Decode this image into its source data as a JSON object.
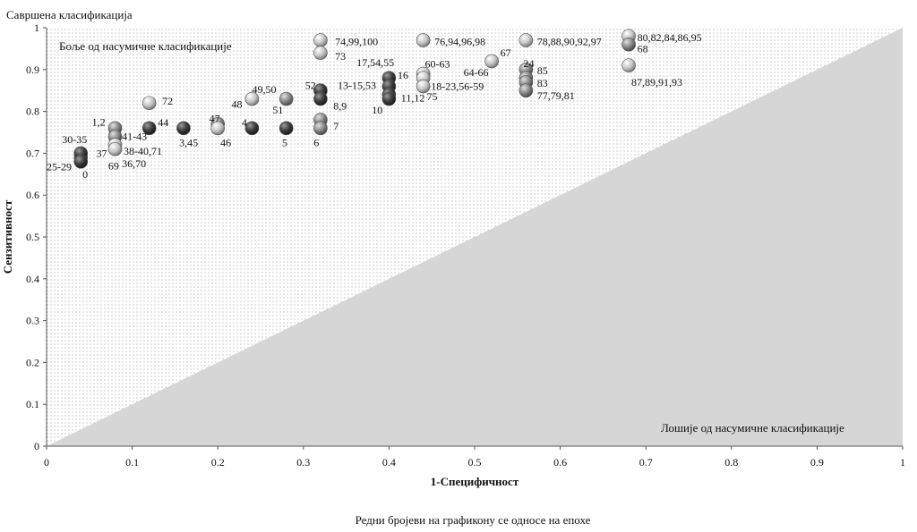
{
  "chart_data": {
    "type": "scatter",
    "title": "",
    "xlabel": "1-Специфичност",
    "ylabel": "Сензитивност",
    "xlim": [
      0,
      1
    ],
    "ylim": [
      0,
      1
    ],
    "xticks": [
      "0",
      "0.1",
      "0.2",
      "0.3",
      "0.4",
      "0.5",
      "0.6",
      "0.7",
      "0.8",
      "0.9",
      "1"
    ],
    "yticks": [
      "0",
      "0.1",
      "0.2",
      "0.3",
      "0.4",
      "0.5",
      "0.6",
      "0.7",
      "0.8",
      "0.9",
      "1"
    ],
    "grid": false,
    "annotations": {
      "perfect": "Савршена класификација",
      "better": "Боље од насумичне класификације",
      "worse": "Лошије од насумичне класификације",
      "footnote": "Редни бројеви на графикону се односе на епохе"
    },
    "colors": {
      "worse_region": "#d6d6d6",
      "dots": "#bdbdbd",
      "axis": "#555555"
    },
    "points": [
      {
        "x": 0.04,
        "y": 0.69,
        "shade": "dark"
      },
      {
        "x": 0.04,
        "y": 0.7,
        "shade": "dark"
      },
      {
        "x": 0.04,
        "y": 0.68,
        "shade": "dark"
      },
      {
        "x": 0.08,
        "y": 0.76,
        "shade": "mid"
      },
      {
        "x": 0.08,
        "y": 0.74,
        "shade": "mid"
      },
      {
        "x": 0.08,
        "y": 0.72,
        "shade": "light"
      },
      {
        "x": 0.08,
        "y": 0.71,
        "shade": "light"
      },
      {
        "x": 0.12,
        "y": 0.82,
        "shade": "light"
      },
      {
        "x": 0.12,
        "y": 0.76,
        "shade": "dark"
      },
      {
        "x": 0.16,
        "y": 0.76,
        "shade": "dark"
      },
      {
        "x": 0.2,
        "y": 0.77,
        "shade": "mid"
      },
      {
        "x": 0.2,
        "y": 0.76,
        "shade": "light"
      },
      {
        "x": 0.24,
        "y": 0.83,
        "shade": "light"
      },
      {
        "x": 0.24,
        "y": 0.76,
        "shade": "dark"
      },
      {
        "x": 0.28,
        "y": 0.83,
        "shade": "mid"
      },
      {
        "x": 0.28,
        "y": 0.76,
        "shade": "dark"
      },
      {
        "x": 0.32,
        "y": 0.97,
        "shade": "light"
      },
      {
        "x": 0.32,
        "y": 0.94,
        "shade": "light"
      },
      {
        "x": 0.32,
        "y": 0.85,
        "shade": "dark"
      },
      {
        "x": 0.32,
        "y": 0.83,
        "shade": "dark"
      },
      {
        "x": 0.32,
        "y": 0.78,
        "shade": "mid"
      },
      {
        "x": 0.32,
        "y": 0.76,
        "shade": "mid"
      },
      {
        "x": 0.4,
        "y": 0.88,
        "shade": "dark"
      },
      {
        "x": 0.4,
        "y": 0.86,
        "shade": "dark"
      },
      {
        "x": 0.4,
        "y": 0.84,
        "shade": "dark"
      },
      {
        "x": 0.4,
        "y": 0.83,
        "shade": "dark"
      },
      {
        "x": 0.44,
        "y": 0.97,
        "shade": "light"
      },
      {
        "x": 0.44,
        "y": 0.89,
        "shade": "light"
      },
      {
        "x": 0.44,
        "y": 0.88,
        "shade": "light"
      },
      {
        "x": 0.44,
        "y": 0.86,
        "shade": "light"
      },
      {
        "x": 0.52,
        "y": 0.92,
        "shade": "light"
      },
      {
        "x": 0.56,
        "y": 0.97,
        "shade": "light"
      },
      {
        "x": 0.56,
        "y": 0.9,
        "shade": "mid"
      },
      {
        "x": 0.56,
        "y": 0.88,
        "shade": "mid"
      },
      {
        "x": 0.56,
        "y": 0.87,
        "shade": "mid"
      },
      {
        "x": 0.56,
        "y": 0.85,
        "shade": "mid"
      },
      {
        "x": 0.68,
        "y": 0.98,
        "shade": "light"
      },
      {
        "x": 0.68,
        "y": 0.96,
        "shade": "mid"
      },
      {
        "x": 0.68,
        "y": 0.91,
        "shade": "light"
      }
    ],
    "labels": [
      {
        "text": "30-35",
        "x": 0.018,
        "y": 0.733
      },
      {
        "text": "25-29",
        "x": 0.0,
        "y": 0.668
      },
      {
        "text": "0",
        "x": 0.042,
        "y": 0.65
      },
      {
        "text": "1,2",
        "x": 0.053,
        "y": 0.775
      },
      {
        "text": "41-43",
        "x": 0.088,
        "y": 0.74
      },
      {
        "text": "37",
        "x": 0.058,
        "y": 0.7
      },
      {
        "text": "38-40,71",
        "x": 0.09,
        "y": 0.705
      },
      {
        "text": "69",
        "x": 0.072,
        "y": 0.67
      },
      {
        "text": "36,70",
        "x": 0.088,
        "y": 0.675
      },
      {
        "text": "72",
        "x": 0.135,
        "y": 0.825
      },
      {
        "text": "44",
        "x": 0.13,
        "y": 0.773
      },
      {
        "text": "3,45",
        "x": 0.155,
        "y": 0.725
      },
      {
        "text": "47",
        "x": 0.19,
        "y": 0.783
      },
      {
        "text": "46",
        "x": 0.203,
        "y": 0.725
      },
      {
        "text": "48",
        "x": 0.216,
        "y": 0.817
      },
      {
        "text": "49,50",
        "x": 0.24,
        "y": 0.853
      },
      {
        "text": "4",
        "x": 0.228,
        "y": 0.773
      },
      {
        "text": "51",
        "x": 0.264,
        "y": 0.803
      },
      {
        "text": "5",
        "x": 0.275,
        "y": 0.725
      },
      {
        "text": "74,99,100",
        "x": 0.337,
        "y": 0.967
      },
      {
        "text": "73",
        "x": 0.337,
        "y": 0.932
      },
      {
        "text": "52",
        "x": 0.302,
        "y": 0.862
      },
      {
        "text": "8,9",
        "x": 0.335,
        "y": 0.813
      },
      {
        "text": "7",
        "x": 0.335,
        "y": 0.765
      },
      {
        "text": "6",
        "x": 0.312,
        "y": 0.725
      },
      {
        "text": "17,54,55",
        "x": 0.362,
        "y": 0.917
      },
      {
        "text": "13-15,53",
        "x": 0.34,
        "y": 0.862
      },
      {
        "text": "16",
        "x": 0.41,
        "y": 0.887
      },
      {
        "text": "11,12",
        "x": 0.414,
        "y": 0.832
      },
      {
        "text": "10",
        "x": 0.38,
        "y": 0.803
      },
      {
        "text": "76,94,96,98",
        "x": 0.453,
        "y": 0.967
      },
      {
        "text": "60-63",
        "x": 0.442,
        "y": 0.913
      },
      {
        "text": "18-23,56-59",
        "x": 0.449,
        "y": 0.86
      },
      {
        "text": "75",
        "x": 0.444,
        "y": 0.835
      },
      {
        "text": "67",
        "x": 0.53,
        "y": 0.94
      },
      {
        "text": "64-66",
        "x": 0.487,
        "y": 0.893
      },
      {
        "text": "24",
        "x": 0.557,
        "y": 0.915
      },
      {
        "text": "85",
        "x": 0.573,
        "y": 0.897
      },
      {
        "text": "78,88,90,92,97",
        "x": 0.573,
        "y": 0.967
      },
      {
        "text": "83",
        "x": 0.573,
        "y": 0.867
      },
      {
        "text": "77,79,81",
        "x": 0.573,
        "y": 0.838
      },
      {
        "text": "80,82,84,86,95",
        "x": 0.69,
        "y": 0.977
      },
      {
        "text": "68",
        "x": 0.69,
        "y": 0.95
      },
      {
        "text": "87,89,91,93",
        "x": 0.683,
        "y": 0.87
      }
    ]
  }
}
